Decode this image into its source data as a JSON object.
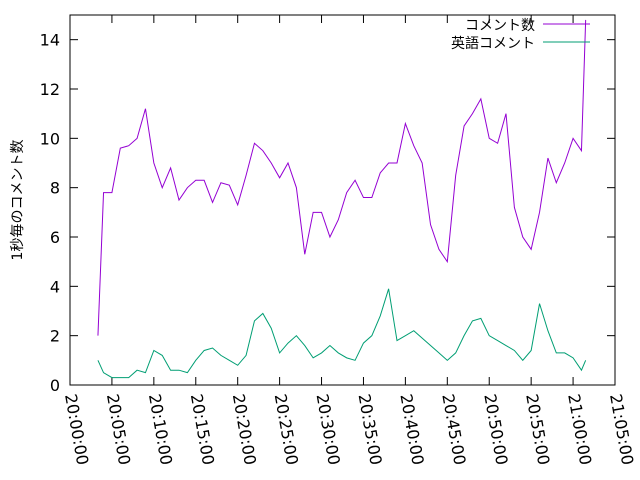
{
  "chart_data": {
    "type": "line",
    "y_label": "1秒毎のコメント数",
    "x": [
      "20:03:20",
      "20:04:00",
      "20:05:00",
      "20:06:00",
      "20:07:00",
      "20:08:00",
      "20:09:00",
      "20:10:00",
      "20:11:00",
      "20:12:00",
      "20:13:00",
      "20:14:00",
      "20:15:00",
      "20:16:00",
      "20:17:00",
      "20:18:00",
      "20:19:00",
      "20:20:00",
      "20:21:00",
      "20:22:00",
      "20:23:00",
      "20:24:00",
      "20:25:00",
      "20:26:00",
      "20:27:00",
      "20:28:00",
      "20:29:00",
      "20:30:00",
      "20:31:00",
      "20:32:00",
      "20:33:00",
      "20:34:00",
      "20:35:00",
      "20:36:00",
      "20:37:00",
      "20:38:00",
      "20:39:00",
      "20:40:00",
      "20:41:00",
      "20:42:00",
      "20:43:00",
      "20:44:00",
      "20:45:00",
      "20:46:00",
      "20:47:00",
      "20:48:00",
      "20:49:00",
      "20:50:00",
      "20:51:00",
      "20:52:00",
      "20:53:00",
      "20:54:00",
      "20:55:00",
      "20:56:00",
      "20:57:00",
      "20:58:00",
      "20:59:00",
      "21:00:00",
      "21:01:00",
      "21:01:30"
    ],
    "series": [
      {
        "name": "コメント数",
        "color": "#9400d3",
        "values": [
          2,
          7.8,
          7.8,
          9.6,
          9.7,
          10.0,
          11.2,
          9.0,
          8.0,
          8.8,
          7.5,
          8.0,
          8.3,
          8.3,
          7.4,
          8.2,
          8.1,
          7.3,
          8.5,
          9.8,
          9.5,
          9.0,
          8.4,
          9.0,
          8.0,
          5.3,
          7.0,
          7.0,
          6.0,
          6.7,
          7.8,
          8.3,
          7.6,
          7.6,
          8.6,
          9.0,
          9.0,
          10.6,
          9.7,
          9.0,
          6.5,
          5.5,
          5.0,
          8.5,
          10.5,
          11.0,
          11.6,
          10.0,
          9.8,
          11.0,
          7.2,
          6.0,
          5.5,
          7.0,
          9.2,
          8.2,
          9.0,
          10.0,
          9.5,
          14.8
        ]
      },
      {
        "name": "英語コメント",
        "color": "#009e73",
        "values": [
          1.0,
          0.5,
          0.3,
          0.3,
          0.3,
          0.6,
          0.5,
          1.4,
          1.2,
          0.6,
          0.6,
          0.5,
          1.0,
          1.4,
          1.5,
          1.2,
          1.0,
          0.8,
          1.2,
          2.6,
          2.9,
          2.3,
          1.3,
          1.7,
          2.0,
          1.6,
          1.1,
          1.3,
          1.6,
          1.3,
          1.1,
          1.0,
          1.7,
          2.0,
          2.8,
          3.9,
          1.8,
          2.0,
          2.2,
          1.9,
          1.6,
          1.3,
          1.0,
          1.3,
          2.0,
          2.6,
          2.7,
          2.0,
          1.8,
          1.6,
          1.4,
          1.0,
          1.4,
          3.3,
          2.2,
          1.3,
          1.3,
          1.1,
          0.6,
          1.0
        ]
      }
    ],
    "xlim": [
      "20:00:00",
      "21:05:00"
    ],
    "xticks": [
      "20:00:00",
      "20:05:00",
      "20:10:00",
      "20:15:00",
      "20:20:00",
      "20:25:00",
      "20:30:00",
      "20:35:00",
      "20:40:00",
      "20:45:00",
      "20:50:00",
      "20:55:00",
      "21:00:00",
      "21:05:00"
    ],
    "ylim": [
      0,
      15
    ],
    "yticks": [
      0,
      2,
      4,
      6,
      8,
      10,
      12,
      14
    ],
    "legend": "top-right"
  }
}
